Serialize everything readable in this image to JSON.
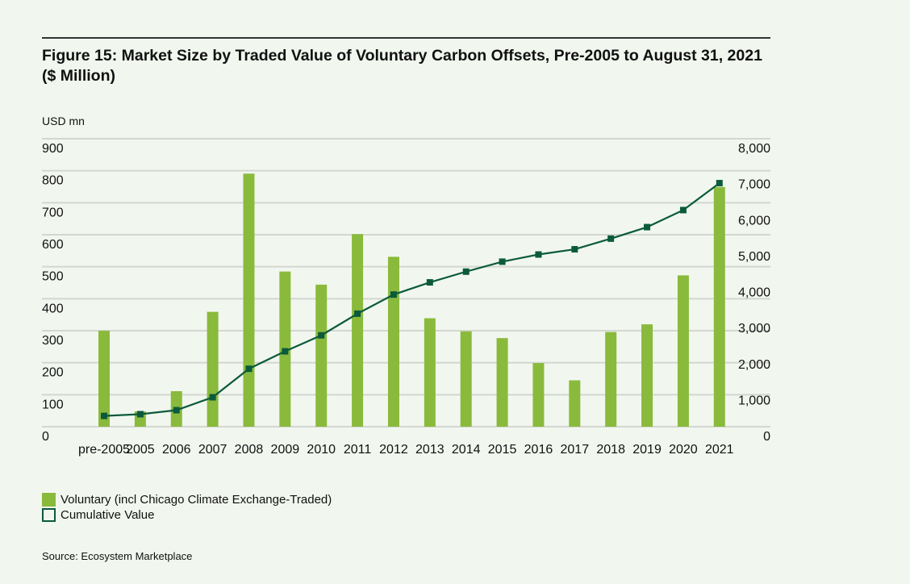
{
  "figure": {
    "title": "Figure 15: Market Size by Traded Value of Voluntary Carbon Offsets, Pre-2005 to August 31, 2021 ($ Million)",
    "unit_label": "USD mn",
    "source": "Source: Ecosystem Marketplace"
  },
  "chart_data": {
    "type": "bar+line",
    "title": "Figure 15: Market Size by Traded Value of Voluntary Carbon Offsets, Pre-2005 to August 31, 2021 ($ Million)",
    "ylabel": "USD mn",
    "categories": [
      "pre-2005",
      "2005",
      "2006",
      "2007",
      "2008",
      "2009",
      "2010",
      "2011",
      "2012",
      "2013",
      "2014",
      "2015",
      "2016",
      "2017",
      "2018",
      "2019",
      "2020",
      "2021"
    ],
    "series": [
      {
        "name": "Voluntary (incl Chicago Climate Exchange-Traded)",
        "type": "bar",
        "axis": "left",
        "color": "#8aba3c",
        "values": [
          300,
          48,
          111,
          359,
          791,
          485,
          444,
          602,
          531,
          339,
          298,
          277,
          199,
          145,
          296,
          320,
          473,
          749
        ]
      },
      {
        "name": "Cumulative Value",
        "type": "line",
        "axis": "right",
        "color": "#0b5a3c",
        "values": [
          300,
          348,
          459,
          818,
          1609,
          2094,
          2538,
          3140,
          3671,
          4010,
          4308,
          4585,
          4784,
          4929,
          5225,
          5545,
          6018,
          6767
        ]
      }
    ],
    "left_axis": {
      "ylim": [
        0,
        900
      ],
      "ticks": [
        "0",
        "100",
        "200",
        "300",
        "400",
        "500",
        "600",
        "700",
        "800",
        "900"
      ]
    },
    "right_axis": {
      "ylim": [
        0,
        8000
      ],
      "ticks": [
        "0",
        "1,000",
        "2,000",
        "3,000",
        "4,000",
        "5,000",
        "6,000",
        "7,000",
        "8,000"
      ]
    },
    "grid": true,
    "legend_position": "bottom-left"
  }
}
